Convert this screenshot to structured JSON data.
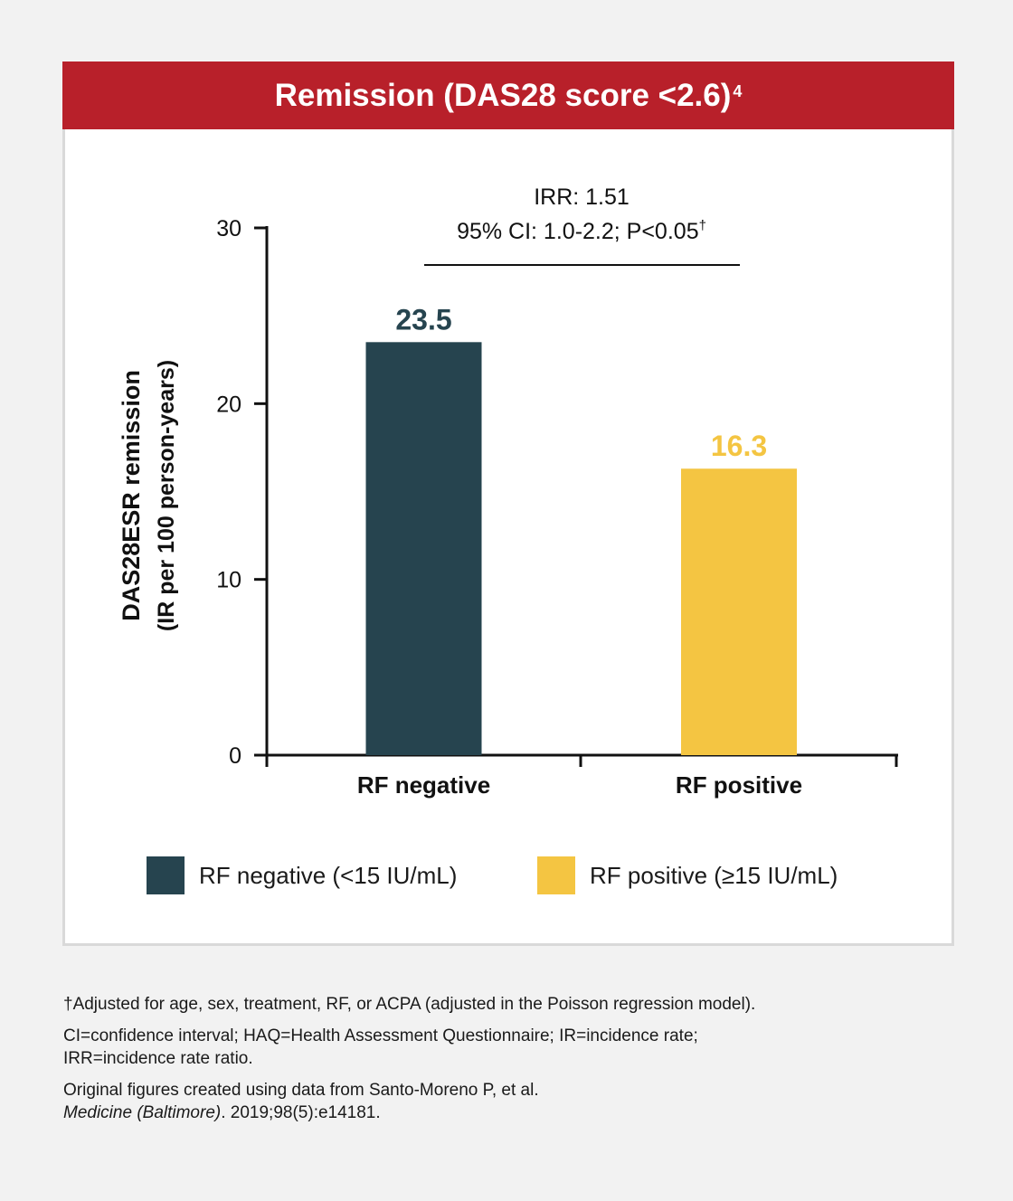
{
  "header": {
    "title": "Remission (DAS28 score <2.6)",
    "sup": "4"
  },
  "colors": {
    "header_bg": "#b8202a",
    "negative": "#26444f",
    "positive": "#f4c542"
  },
  "chart_data": {
    "type": "bar",
    "categories": [
      "RF negative",
      "RF positive"
    ],
    "values": [
      23.5,
      16.3
    ],
    "value_labels": [
      "23.5",
      "16.3"
    ],
    "colors": [
      "#26444f",
      "#f4c542"
    ],
    "ylabel_line1": "DAS28ESR remission",
    "ylabel_line2": "(IR per 100 person-years)",
    "ylim": [
      0,
      30
    ],
    "yticks": [
      0,
      10,
      20,
      30
    ],
    "grid": false,
    "annotation": {
      "line1": "IRR: 1.51",
      "line2": "95% CI: 1.0-2.2; P<0.05",
      "line2_sup": "†"
    }
  },
  "legend": [
    {
      "label": "RF negative (<15 IU/mL)",
      "color": "#26444f"
    },
    {
      "label": "RF positive (≥15 IU/mL)",
      "color": "#f4c542"
    }
  ],
  "footnotes": {
    "adjusted": "†Adjusted for age, sex, treatment, RF, or ACPA (adjusted in the Poisson regression model).",
    "abbrev_1": "CI=confidence interval; HAQ=Health Assessment Questionnaire; IR=incidence rate;",
    "abbrev_2": "IRR=incidence rate ratio.",
    "source_1": "Original figures created using data from Santo-Moreno P, et al.",
    "source_journal": "Medicine (Baltimore)",
    "source_rest": ". 2019;98(5):e14181."
  }
}
